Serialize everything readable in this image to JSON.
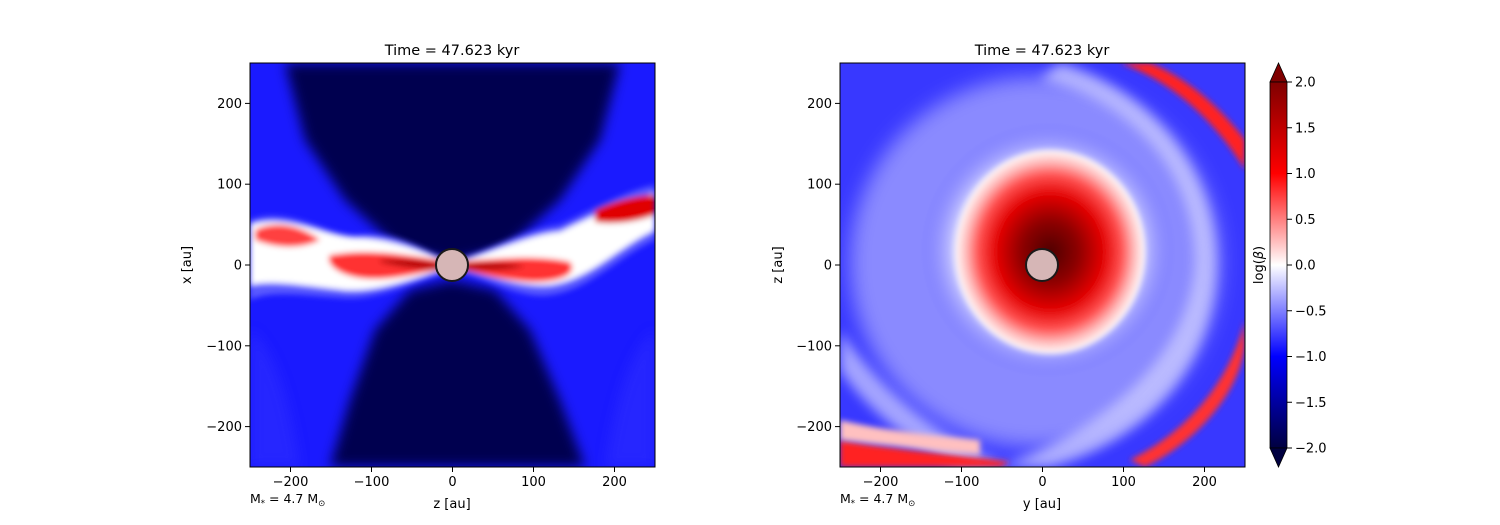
{
  "chart_data": [
    {
      "type": "heatmap",
      "title": "Time = 47.623 kyr",
      "xlabel": "z [au]",
      "ylabel": "x [au]",
      "xlim": [
        -250,
        250
      ],
      "ylim": [
        -250,
        250
      ],
      "xticks": [
        -200,
        -100,
        0,
        100,
        200
      ],
      "yticks": [
        -200,
        -100,
        0,
        100,
        200
      ],
      "xtick_labels": [
        "−200",
        "−100",
        "0",
        "100",
        "200"
      ],
      "ytick_labels": [
        "−200",
        "−100",
        "0",
        "100",
        "200"
      ],
      "annotation_parts": [
        "M",
        "*",
        " = 4.7 M",
        "⊙"
      ],
      "sink": {
        "x": 0,
        "y": 0,
        "radius": 20
      },
      "view": "edge-on"
    },
    {
      "type": "heatmap",
      "title": "Time = 47.623 kyr",
      "xlabel": "y [au]",
      "ylabel": "z [au]",
      "xlim": [
        -250,
        250
      ],
      "ylim": [
        -250,
        250
      ],
      "xticks": [
        -200,
        -100,
        0,
        100,
        200
      ],
      "yticks": [
        -200,
        -100,
        0,
        100,
        200
      ],
      "xtick_labels": [
        "−200",
        "−100",
        "0",
        "100",
        "200"
      ],
      "ytick_labels": [
        "−200",
        "−100",
        "0",
        "100",
        "200"
      ],
      "annotation_parts": [
        "M",
        "*",
        " = 4.7 M",
        "⊙"
      ],
      "sink": {
        "x": 0,
        "y": 0,
        "radius": 20
      },
      "view": "face-on"
    }
  ],
  "colorbar": {
    "label_parts": [
      "log(",
      "β",
      ")"
    ],
    "range": [
      -2.0,
      2.0
    ],
    "ticks": [
      2.0,
      1.5,
      1.0,
      0.5,
      0.0,
      -0.5,
      -1.0,
      -1.5,
      -2.0
    ],
    "tick_labels": [
      "2.0",
      "1.5",
      "1.0",
      "0.5",
      "0.0",
      "−0.5",
      "−1.0",
      "−1.5",
      "−2.0"
    ],
    "colormap": "seismic",
    "colors": [
      "#000040",
      "#0000ff",
      "#ffffff",
      "#ff0000",
      "#7f0000"
    ],
    "extend": "both"
  }
}
